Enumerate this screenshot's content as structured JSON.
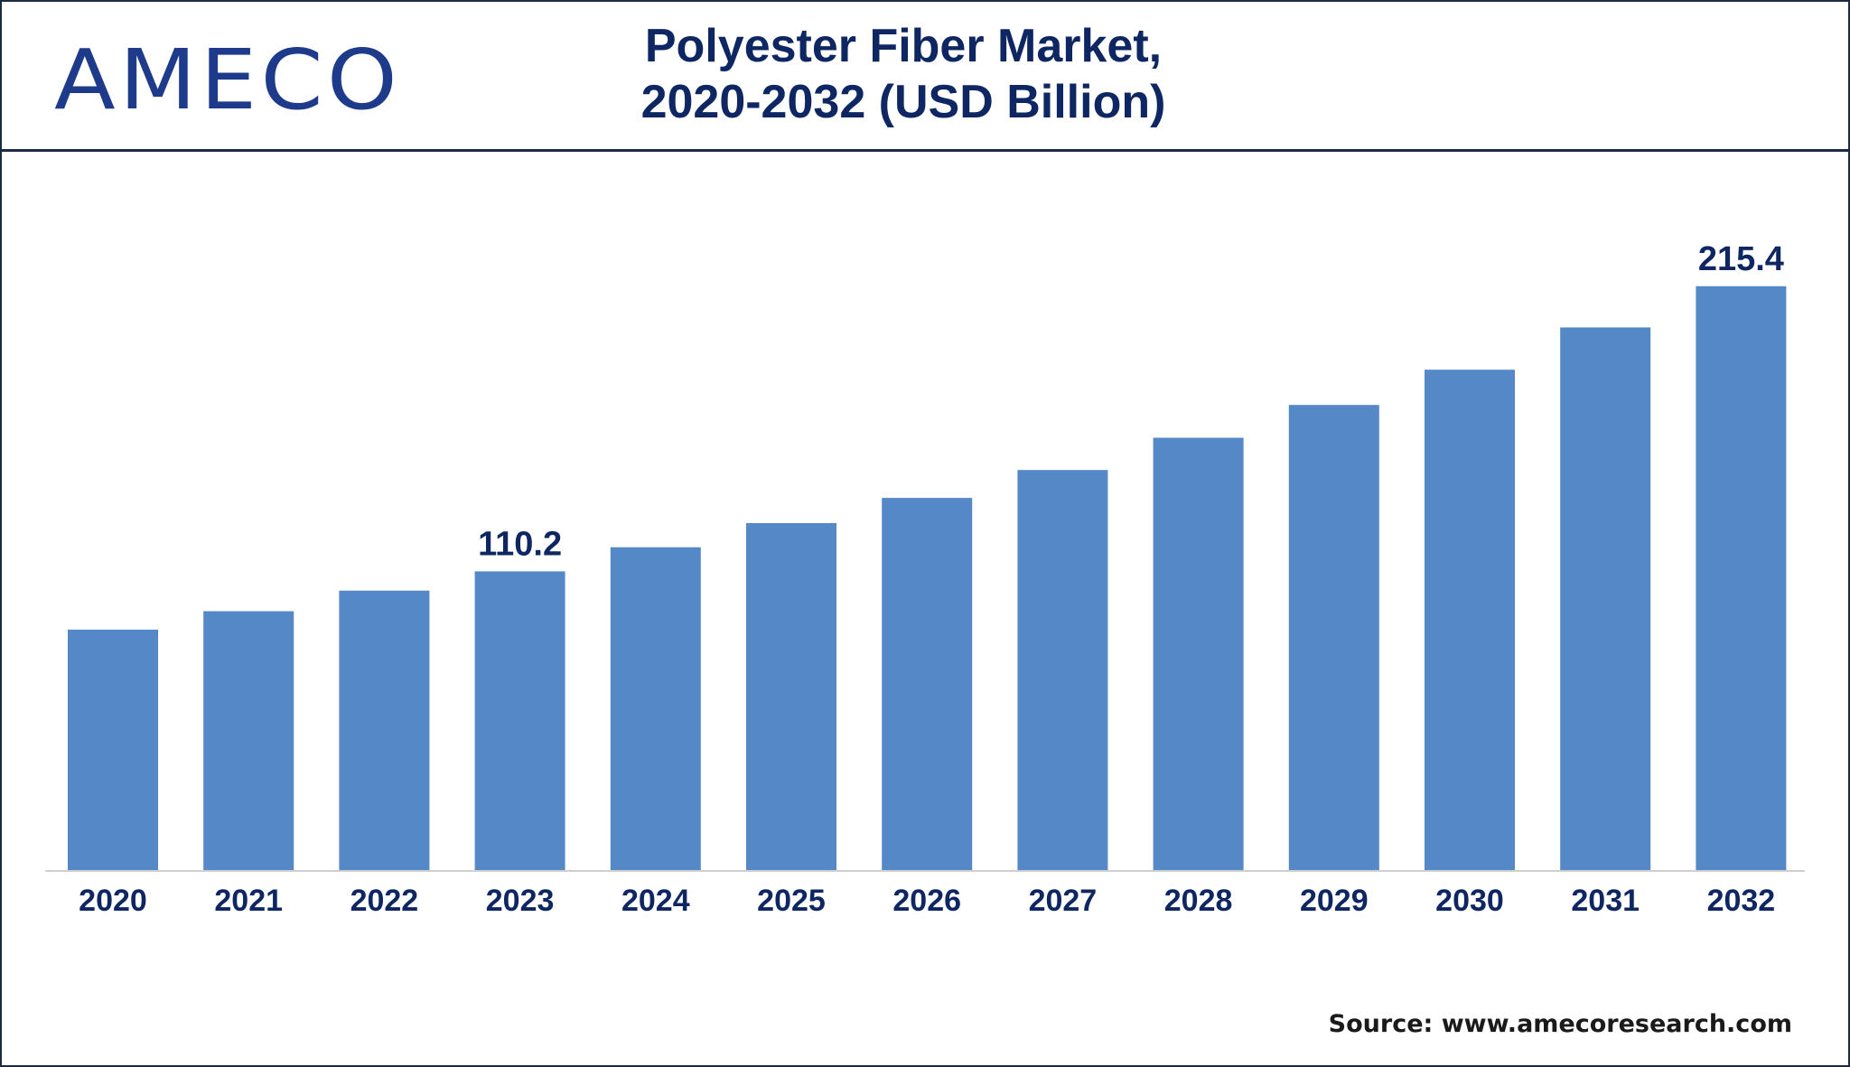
{
  "header": {
    "logo_text": "AMECO",
    "title_line1": "Polyester Fiber Market,",
    "title_line2": "2020-2032 (USD Billion)"
  },
  "footer": {
    "source": "Source: www.amecoresearch.com"
  },
  "colors": {
    "bar": "#5588c7",
    "title": "#0e2763",
    "label": "#0e2763",
    "border": "#1c2a45",
    "axis": "#cfcfcf"
  },
  "chart_data": {
    "type": "bar",
    "title": "Polyester Fiber Market, 2020-2032 (USD Billion)",
    "xlabel": "",
    "ylabel": "",
    "categories": [
      "2020",
      "2021",
      "2022",
      "2023",
      "2024",
      "2025",
      "2026",
      "2027",
      "2028",
      "2029",
      "2030",
      "2031",
      "2032"
    ],
    "values": [
      88.7,
      95.5,
      103.1,
      110.2,
      119.1,
      128.0,
      137.3,
      147.6,
      159.5,
      171.6,
      184.6,
      200.2,
      215.4
    ],
    "data_labels": [
      {
        "index": 3,
        "text": "110.2"
      },
      {
        "index": 12,
        "text": "215.4"
      }
    ],
    "ylim": [
      0,
      240
    ],
    "grid": false,
    "legend": "none"
  }
}
